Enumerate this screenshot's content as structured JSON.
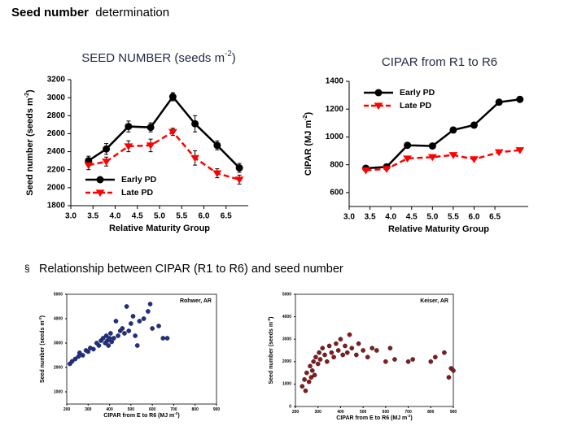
{
  "header": {
    "title_bold": "Seed number",
    "title_rest": "determination"
  },
  "bullet": "Relationship between CIPAR (R1 to R6) and seed number",
  "chart_data": [
    {
      "type": "line",
      "title": [
        "SEED NUMBER (seeds m",
        "-2",
        ")"
      ],
      "x_label": [
        "Relative Maturity Group"
      ],
      "y_label": [
        "Seed number (seeds m",
        "-2",
        ")"
      ],
      "x": [
        3.4,
        3.8,
        4.3,
        4.8,
        5.3,
        5.8,
        6.3,
        6.8
      ],
      "series": [
        {
          "name": "Early PD",
          "color": "#000000",
          "marker": "circle",
          "linestyle": "solid",
          "values": [
            2300,
            2430,
            2680,
            2670,
            3010,
            2710,
            2470,
            2220
          ],
          "errors": [
            50,
            60,
            60,
            50,
            45,
            90,
            50,
            50
          ]
        },
        {
          "name": "Late PD",
          "color": "#ff0000",
          "marker": "triangle-down",
          "linestyle": "dashed",
          "values": [
            2250,
            2290,
            2460,
            2470,
            2620,
            2330,
            2160,
            2090
          ],
          "errors": [
            50,
            50,
            60,
            70,
            40,
            80,
            50,
            50
          ]
        }
      ],
      "xlim": [
        3.0,
        7.0
      ],
      "xticks": [
        {
          "value": 3,
          "label": "3.0"
        },
        3.5,
        {
          "value": 4,
          "label": "4.0"
        },
        4.5,
        {
          "value": 5,
          "label": "5.0"
        },
        5.5,
        {
          "value": 6,
          "label": "6.0"
        },
        6.5
      ],
      "ylim": [
        1800,
        3200
      ],
      "yticks": [
        1800,
        2000,
        2200,
        2400,
        2600,
        2800,
        3000,
        3200
      ],
      "legend": "lower left",
      "frame": false
    },
    {
      "type": "line",
      "title": [
        "CIPAR from R1 to R6"
      ],
      "x_label": [
        "Relative Maturity Group"
      ],
      "y_label": [
        "CIPAR (MJ m",
        "-2",
        ")"
      ],
      "x": [
        3.4,
        3.9,
        4.4,
        5.0,
        5.5,
        6.0,
        6.6,
        7.1
      ],
      "series": [
        {
          "name": "Early PD",
          "color": "#000000",
          "marker": "circle",
          "linestyle": "solid",
          "values": [
            775,
            785,
            940,
            935,
            1050,
            1085,
            1250,
            1270
          ]
        },
        {
          "name": "Late PD",
          "color": "#ff0000",
          "marker": "triangle-down",
          "linestyle": "dashed",
          "values": [
            760,
            770,
            845,
            855,
            870,
            840,
            890,
            905
          ]
        }
      ],
      "xlim": [
        3.0,
        7.3
      ],
      "xticks": [
        {
          "value": 3,
          "label": "3.0"
        },
        3.5,
        {
          "value": 4,
          "label": "4.0"
        },
        4.5,
        {
          "value": 5,
          "label": "5.0"
        },
        5.5,
        {
          "value": 6,
          "label": "6.0"
        },
        6.5
      ],
      "ylim": [
        500,
        1400
      ],
      "yticks": [
        600,
        800,
        1000,
        1200,
        1400
      ],
      "legend": "upper left",
      "frame": false
    },
    {
      "type": "scatter",
      "annotation": "Rohwer, AR",
      "x_label": [
        "CIPAR from E to R6 (MJ m",
        "-2",
        ")"
      ],
      "y_label": [
        "Seed number (seeds m",
        "-2",
        ")"
      ],
      "color": "#1f2f8f",
      "x": [
        215,
        225,
        240,
        255,
        260,
        275,
        290,
        300,
        310,
        325,
        340,
        350,
        360,
        370,
        380,
        385,
        390,
        395,
        400,
        405,
        410,
        420,
        430,
        440,
        450,
        460,
        470,
        480,
        490,
        500,
        510,
        520,
        530,
        540,
        560,
        580,
        590,
        600,
        630,
        650,
        670
      ],
      "values": [
        2150,
        2250,
        2350,
        2450,
        2600,
        2500,
        2700,
        2650,
        2800,
        2750,
        3000,
        2900,
        3100,
        3200,
        3000,
        3300,
        3100,
        2900,
        3200,
        3400,
        3050,
        3200,
        3900,
        3300,
        3500,
        3600,
        3400,
        4500,
        3500,
        3800,
        4100,
        3300,
        2900,
        3900,
        4000,
        4300,
        4600,
        3600,
        3700,
        3200,
        3200
      ],
      "xlim": [
        200,
        900
      ],
      "xticks": [
        200,
        300,
        400,
        500,
        600,
        700,
        800,
        900
      ],
      "ylim": [
        500,
        5000
      ],
      "yticks": [
        1000,
        2000,
        3000,
        4000,
        5000
      ],
      "frame": true
    },
    {
      "type": "scatter",
      "annotation": "Keiser, AR",
      "x_label": [
        "CIPAR from E to R6 (MJ m",
        "-2",
        ")"
      ],
      "y_label": [
        "Seed number (seeds m",
        "-2",
        ")"
      ],
      "color": "#8b1a1a",
      "x": [
        230,
        240,
        245,
        250,
        260,
        265,
        270,
        275,
        280,
        285,
        290,
        300,
        305,
        310,
        320,
        330,
        340,
        350,
        360,
        370,
        380,
        390,
        400,
        410,
        420,
        430,
        440,
        450,
        470,
        480,
        500,
        520,
        540,
        560,
        600,
        620,
        640,
        700,
        720,
        800,
        820,
        860,
        880,
        890,
        900
      ],
      "values": [
        900,
        1200,
        700,
        1500,
        1100,
        1800,
        1300,
        1600,
        2000,
        1400,
        2200,
        1900,
        2400,
        2100,
        2600,
        2300,
        2000,
        2700,
        2400,
        2200,
        2800,
        2500,
        3000,
        2300,
        2700,
        2400,
        3200,
        2600,
        2300,
        2800,
        2500,
        2200,
        2600,
        2500,
        2000,
        2600,
        2100,
        2000,
        2100,
        2000,
        2200,
        2400,
        1300,
        1700,
        1600
      ],
      "xlim": [
        200,
        900
      ],
      "xticks": [
        200,
        300,
        400,
        500,
        600,
        700,
        800,
        900
      ],
      "ylim": [
        0,
        5000
      ],
      "yticks": [
        0,
        1000,
        2000,
        3000,
        4000,
        5000
      ],
      "frame": true
    }
  ]
}
